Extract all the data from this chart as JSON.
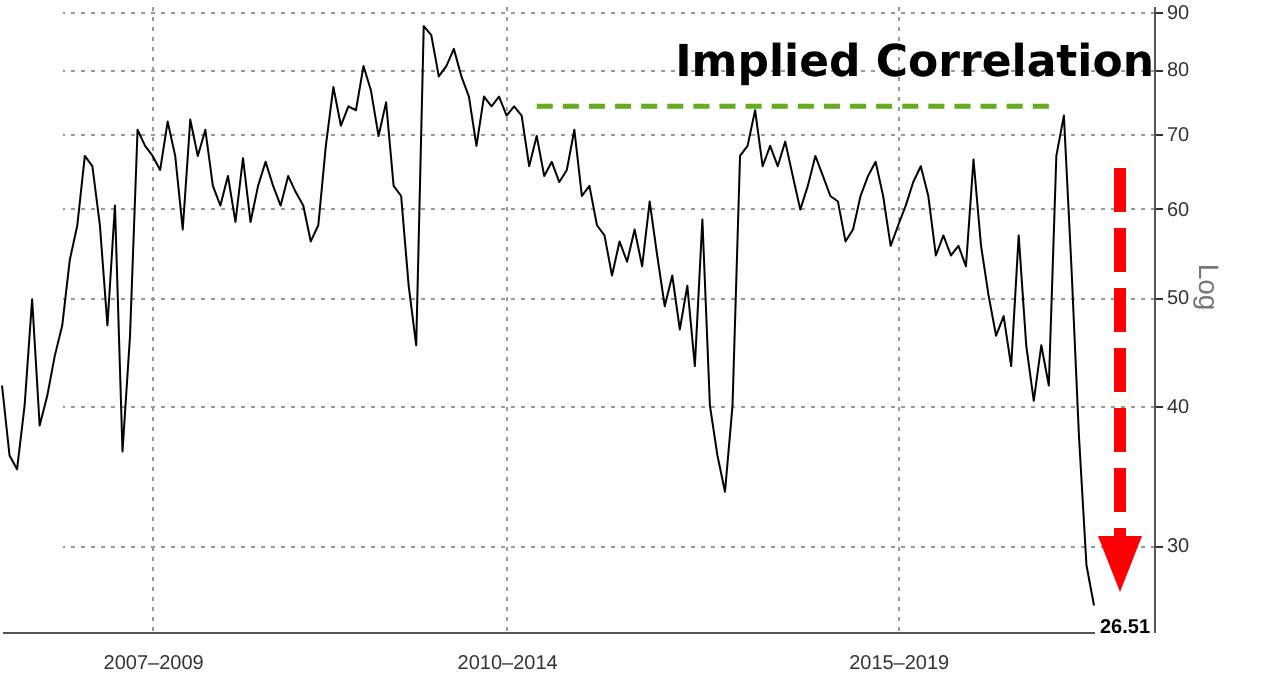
{
  "chart_data": {
    "type": "line",
    "title": "Implied Correlation",
    "ylabel": "Log",
    "log": "y",
    "grid": true,
    "categories": [
      null,
      null,
      null,
      null,
      null,
      null,
      null,
      null,
      null,
      null,
      null,
      null,
      null,
      null,
      null,
      null,
      null,
      null,
      null,
      null,
      "2007–2009",
      null,
      null,
      null,
      null,
      null,
      null,
      null,
      null,
      null,
      null,
      null,
      null,
      null,
      null,
      null,
      null,
      null,
      null,
      null,
      null,
      null,
      null,
      null,
      null,
      null,
      null,
      null,
      null,
      null,
      null,
      null,
      null,
      null,
      null,
      null,
      null,
      null,
      null,
      null,
      null,
      null,
      null,
      null,
      null,
      null,
      null,
      "2010–2014",
      null,
      null,
      null,
      null,
      null,
      null,
      null,
      null,
      null,
      null,
      null,
      null,
      null,
      null,
      null,
      null,
      null,
      null,
      null,
      null,
      null,
      null,
      null,
      null,
      null,
      null,
      null,
      null,
      null,
      null,
      null,
      null,
      null,
      null,
      null,
      null,
      null,
      null,
      null,
      null,
      null,
      null,
      null,
      null,
      null,
      null,
      null,
      null,
      null,
      null,
      null,
      "2015–2019",
      null,
      null,
      null,
      null,
      null,
      null,
      null,
      null,
      null,
      null,
      null,
      null,
      null,
      null,
      null,
      null,
      null,
      null,
      null,
      null,
      null,
      null,
      null,
      null,
      null,
      null
    ],
    "ylim": [
      25.1,
      91.1
    ],
    "yticks": [
      30,
      40,
      50,
      60,
      70,
      80,
      90
    ],
    "series": [
      {
        "color": "#000000",
        "values": [
          41.7,
          36.1,
          35.1,
          40.0,
          49.8,
          38.4,
          40.8,
          44.3,
          47.2,
          54.0,
          58.0,
          66.9,
          65.5,
          58.0,
          47.2,
          60.4,
          36.4,
          46.2,
          70.6,
          68.3,
          66.9,
          65.0,
          71.8,
          66.9,
          57.5,
          72.1,
          66.9,
          70.6,
          62.9,
          60.4,
          64.2,
          58.4,
          66.6,
          58.4,
          62.9,
          66.1,
          62.9,
          60.4,
          64.2,
          62.1,
          60.4,
          56.1,
          58.0,
          68.3,
          77.1,
          71.2,
          74.1,
          73.5,
          80.5,
          76.5,
          69.7,
          74.7,
          62.9,
          61.6,
          51.2,
          45.3,
          87.4,
          85.8,
          78.8,
          80.5,
          83.4,
          78.8,
          75.6,
          68.3,
          75.6,
          74.1,
          75.6,
          72.7,
          74.1,
          72.7,
          65.5,
          69.7,
          64.2,
          66.1,
          63.4,
          65.0,
          70.6,
          61.6,
          62.9,
          58.0,
          56.8,
          52.3,
          56.1,
          53.8,
          57.5,
          53.3,
          60.9,
          54.5,
          49.1,
          52.3,
          46.8,
          51.2,
          43.4,
          58.7,
          40.0,
          36.1,
          33.5,
          40.0,
          66.9,
          68.3,
          73.5,
          65.5,
          68.3,
          65.5,
          68.9,
          64.2,
          59.9,
          62.9,
          66.9,
          64.2,
          61.6,
          60.9,
          56.1,
          57.5,
          61.6,
          64.2,
          66.1,
          61.6,
          55.6,
          58.0,
          60.4,
          63.4,
          65.5,
          61.6,
          54.5,
          56.8,
          54.5,
          55.6,
          53.3,
          66.4,
          55.6,
          50.2,
          46.2,
          48.1,
          43.4,
          56.8,
          45.3,
          40.4,
          45.3,
          41.7,
          66.9,
          72.7,
          53.3,
          37.6,
          28.8,
          26.51
        ],
        "value_labels": [
          null,
          null,
          null,
          null,
          null,
          null,
          null,
          null,
          null,
          null,
          null,
          null,
          null,
          null,
          null,
          null,
          null,
          null,
          null,
          null,
          null,
          null,
          null,
          null,
          null,
          null,
          null,
          null,
          null,
          null,
          null,
          null,
          null,
          null,
          null,
          null,
          null,
          null,
          null,
          null,
          null,
          null,
          null,
          null,
          null,
          null,
          null,
          null,
          null,
          null,
          null,
          null,
          null,
          null,
          null,
          null,
          null,
          null,
          null,
          null,
          null,
          null,
          null,
          null,
          null,
          null,
          null,
          null,
          null,
          null,
          null,
          null,
          null,
          null,
          null,
          null,
          null,
          null,
          null,
          null,
          null,
          null,
          null,
          null,
          null,
          null,
          null,
          null,
          null,
          null,
          null,
          null,
          null,
          null,
          null,
          null,
          null,
          null,
          null,
          null,
          null,
          null,
          null,
          null,
          null,
          null,
          null,
          null,
          null,
          null,
          null,
          null,
          null,
          null,
          null,
          null,
          null,
          null,
          null,
          null,
          null,
          null,
          null,
          null,
          null,
          null,
          null,
          null,
          null,
          null,
          null,
          null,
          null,
          null,
          null,
          null,
          null,
          null,
          null,
          null,
          null,
          null,
          null,
          null,
          null,
          "26.51"
        ]
      },
      {
        "color": "#66aa22",
        "line_style": "dashed",
        "values": [
          null,
          null,
          null,
          null,
          null,
          null,
          null,
          null,
          null,
          null,
          null,
          null,
          null,
          null,
          null,
          null,
          null,
          null,
          null,
          null,
          null,
          null,
          null,
          null,
          null,
          null,
          null,
          null,
          null,
          null,
          null,
          null,
          null,
          null,
          null,
          null,
          null,
          null,
          null,
          null,
          null,
          null,
          null,
          null,
          null,
          null,
          null,
          null,
          null,
          null,
          null,
          null,
          null,
          null,
          null,
          null,
          null,
          null,
          null,
          null,
          null,
          null,
          null,
          null,
          null,
          null,
          null,
          null,
          null,
          null,
          null,
          74.1,
          74.1,
          74.1,
          74.1,
          74.1,
          74.1,
          74.1,
          74.1,
          74.1,
          74.1,
          74.1,
          74.1,
          74.1,
          74.1,
          74.1,
          74.1,
          74.1,
          74.1,
          74.1,
          74.1,
          74.1,
          74.1,
          74.1,
          74.1,
          74.1,
          74.1,
          74.1,
          74.1,
          74.1,
          74.1,
          74.1,
          74.1,
          74.1,
          74.1,
          74.1,
          74.1,
          74.1,
          74.1,
          74.1,
          74.1,
          74.1,
          74.1,
          74.1,
          74.1,
          74.1,
          74.1,
          74.1,
          74.1,
          74.1,
          74.1,
          74.1,
          74.1,
          74.1,
          74.1,
          74.1,
          74.1,
          74.1,
          74.1,
          74.1,
          74.1,
          74.1,
          74.1,
          74.1,
          74.1,
          74.1,
          74.1,
          74.1,
          74.1,
          74.1,
          null,
          null,
          null,
          null,
          null,
          null
        ]
      }
    ]
  }
}
